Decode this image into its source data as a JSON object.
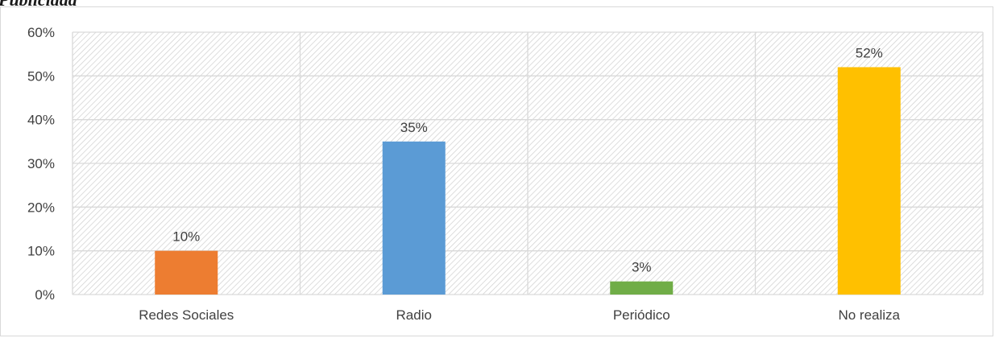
{
  "header": {
    "clipped_title": "Publicidad"
  },
  "chart_data": {
    "type": "bar",
    "title": "",
    "xlabel": "",
    "ylabel": "",
    "categories": [
      "Redes Sociales",
      "Radio",
      "Periódico",
      "No realiza"
    ],
    "values": [
      10,
      35,
      3,
      52
    ],
    "data_labels": [
      "10%",
      "35%",
      "3%",
      "52%"
    ],
    "bar_colors": [
      "#ED7D31",
      "#5B9BD5",
      "#70AD47",
      "#FFC000"
    ],
    "ylim": [
      0,
      60
    ],
    "yticks": [
      0,
      10,
      20,
      30,
      40,
      50,
      60
    ],
    "ytick_labels": [
      "0%",
      "10%",
      "20%",
      "30%",
      "40%",
      "50%",
      "60%"
    ],
    "grid": true,
    "plot_background": "hatched",
    "legend": "none"
  }
}
